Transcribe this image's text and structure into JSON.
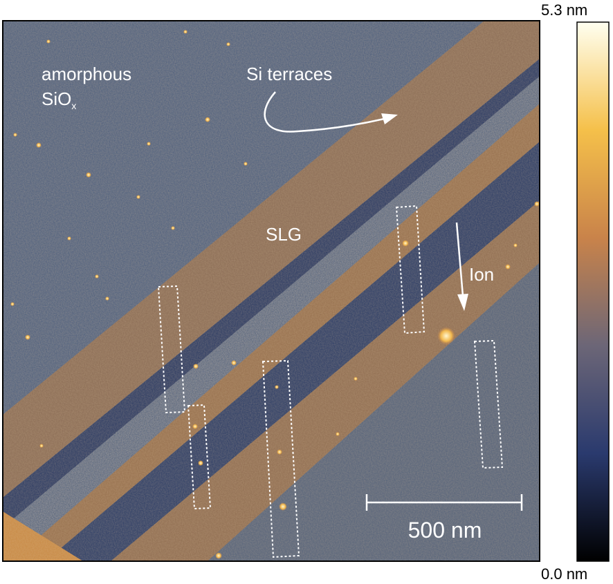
{
  "image": {
    "labels": {
      "amorphous_line1": "amorphous",
      "amorphous_line2_main": "SiO",
      "amorphous_line2_sub": "x",
      "si_terraces": "Si terraces",
      "slg": "SLG",
      "ion": "Ion",
      "scale_bar": "500 nm"
    },
    "colors": {
      "substrate": "#3b4d6c",
      "graphene": "#a27a52",
      "annotation": "#ffffff"
    }
  },
  "colorbar": {
    "max_label": "5.3 nm",
    "min_label": "0.0 nm",
    "stops": [
      "#fffff0",
      "#f5c04a",
      "#c9834a",
      "#6c6677",
      "#2a3a6e",
      "#000000"
    ]
  }
}
